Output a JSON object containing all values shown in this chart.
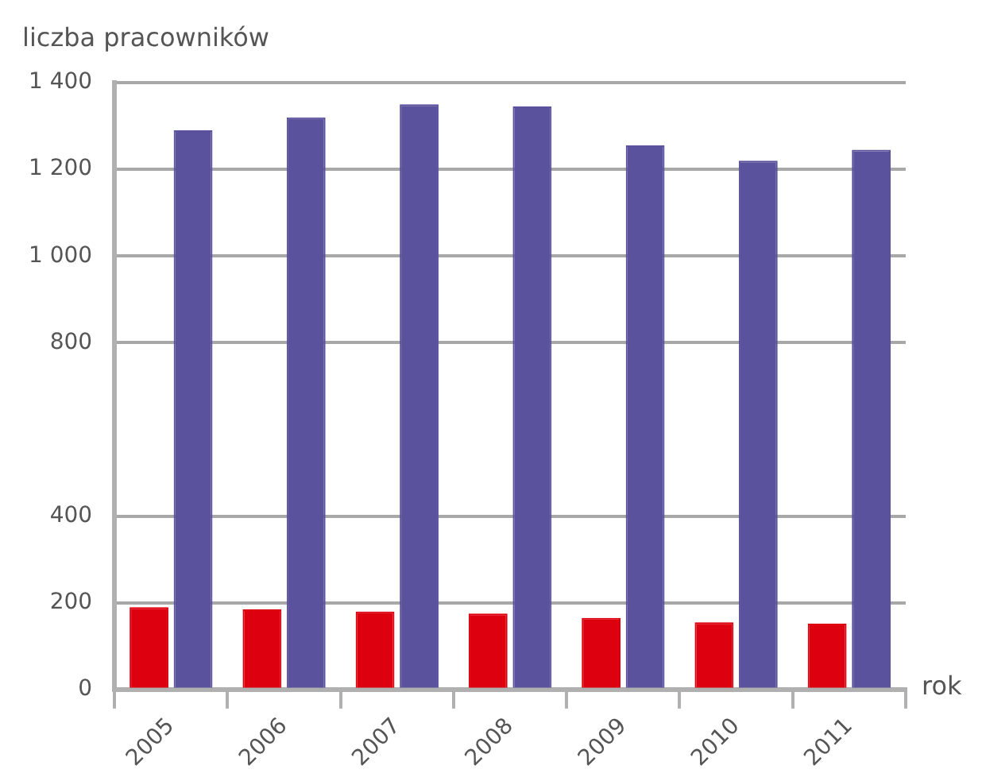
{
  "chart_data": {
    "type": "bar",
    "ylabel": "liczba pracowników",
    "xlabel": "rok",
    "categories": [
      "2005",
      "2006",
      "2007",
      "2008",
      "2009",
      "2010",
      "2011"
    ],
    "series": [
      {
        "color": "#dd000e",
        "values": [
          190,
          185,
          180,
          175,
          165,
          155,
          152
        ]
      },
      {
        "color": "#5a529c",
        "values": [
          1290,
          1320,
          1350,
          1345,
          1255,
          1220,
          1245
        ]
      }
    ],
    "ylim": [
      0,
      1400
    ],
    "yticks": [
      0,
      200,
      400,
      800,
      {
        "value": 1000,
        "label": "1 000"
      },
      {
        "value": 1200,
        "label": "1 200"
      },
      {
        "value": 1400,
        "label": "1 400"
      }
    ],
    "grid": "y",
    "legend": false
  }
}
